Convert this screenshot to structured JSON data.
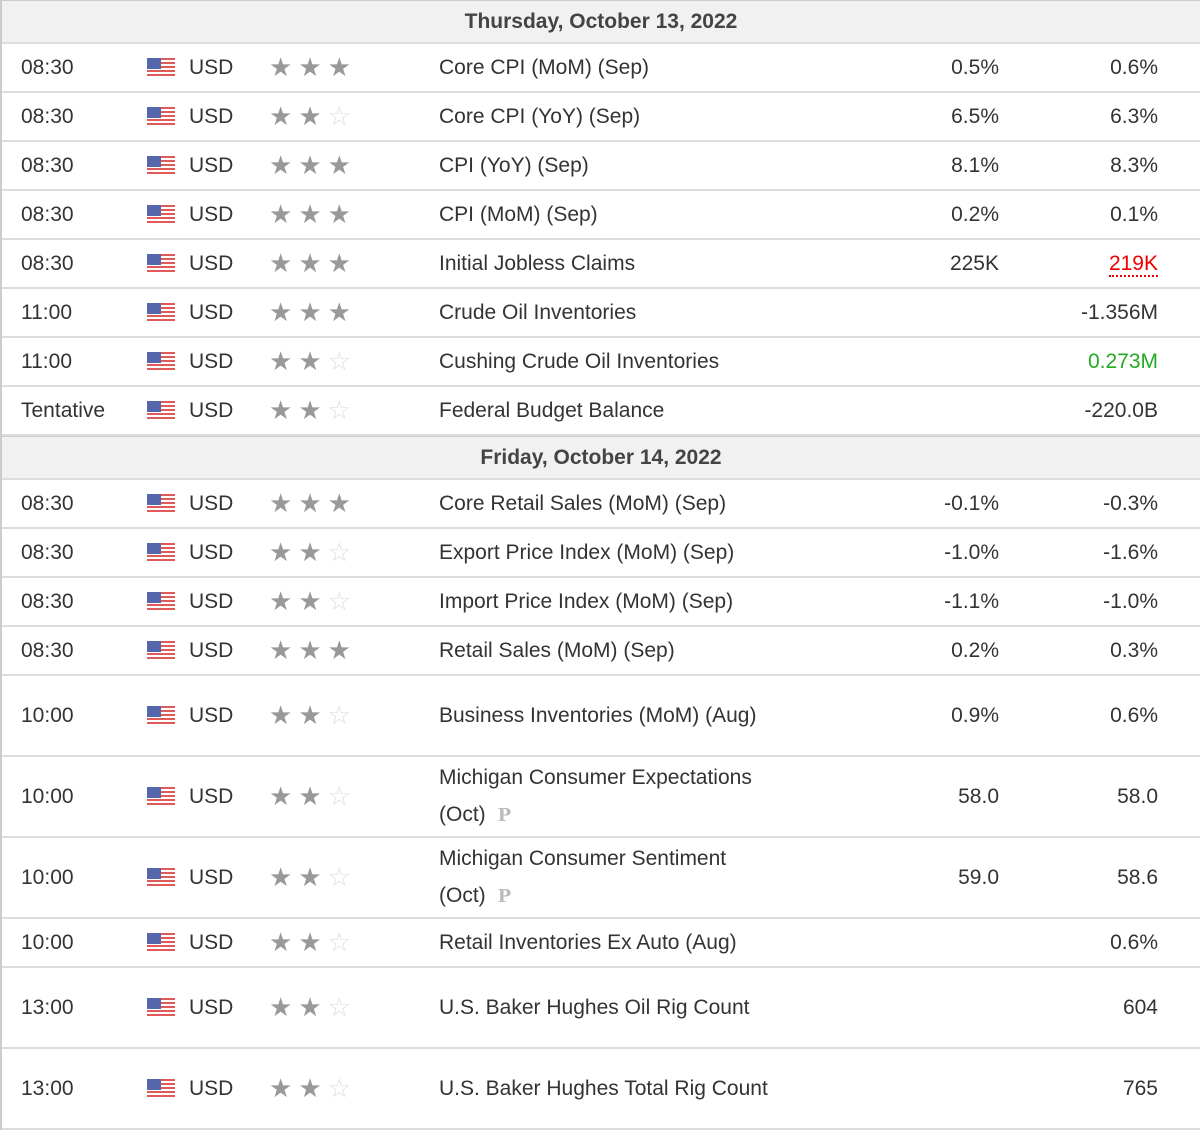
{
  "colors": {
    "red": "#ee0000",
    "green": "#22aa22"
  },
  "days": [
    {
      "title": "Thursday, October 13, 2022",
      "events": [
        {
          "time": "08:30",
          "currency": "USD",
          "stars": 3,
          "event": "Core CPI (MoM) (Sep)",
          "forecast": "0.5%",
          "previous": "0.6%"
        },
        {
          "time": "08:30",
          "currency": "USD",
          "stars": 2,
          "event": "Core CPI (YoY) (Sep)",
          "forecast": "6.5%",
          "previous": "6.3%"
        },
        {
          "time": "08:30",
          "currency": "USD",
          "stars": 3,
          "event": "CPI (YoY) (Sep)",
          "forecast": "8.1%",
          "previous": "8.3%"
        },
        {
          "time": "08:30",
          "currency": "USD",
          "stars": 3,
          "event": "CPI (MoM) (Sep)",
          "forecast": "0.2%",
          "previous": "0.1%"
        },
        {
          "time": "08:30",
          "currency": "USD",
          "stars": 3,
          "event": "Initial Jobless Claims",
          "forecast": "225K",
          "previous": "219K",
          "previous_color": "red"
        },
        {
          "time": "11:00",
          "currency": "USD",
          "stars": 3,
          "event": "Crude Oil Inventories",
          "forecast": "",
          "previous": "-1.356M"
        },
        {
          "time": "11:00",
          "currency": "USD",
          "stars": 2,
          "event": "Cushing Crude Oil Inventories",
          "forecast": "",
          "previous": "0.273M",
          "previous_color": "green"
        },
        {
          "time": "Tentative",
          "currency": "USD",
          "stars": 2,
          "event": "Federal Budget Balance",
          "forecast": "",
          "previous": "-220.0B"
        }
      ]
    },
    {
      "title": "Friday, October 14, 2022",
      "events": [
        {
          "time": "08:30",
          "currency": "USD",
          "stars": 3,
          "event": "Core Retail Sales (MoM) (Sep)",
          "forecast": "-0.1%",
          "previous": "-0.3%"
        },
        {
          "time": "08:30",
          "currency": "USD",
          "stars": 2,
          "event": "Export Price Index (MoM) (Sep)",
          "forecast": "-1.0%",
          "previous": "-1.6%"
        },
        {
          "time": "08:30",
          "currency": "USD",
          "stars": 2,
          "event": "Import Price Index (MoM) (Sep)",
          "forecast": "-1.1%",
          "previous": "-1.0%"
        },
        {
          "time": "08:30",
          "currency": "USD",
          "stars": 3,
          "event": "Retail Sales (MoM) (Sep)",
          "forecast": "0.2%",
          "previous": "0.3%"
        },
        {
          "time": "10:00",
          "currency": "USD",
          "stars": 2,
          "event": "Business Inventories (MoM) (Aug)",
          "forecast": "0.9%",
          "previous": "0.6%",
          "tall": true
        },
        {
          "time": "10:00",
          "currency": "USD",
          "stars": 2,
          "event": "Michigan Consumer Expectations (Oct)",
          "forecast": "58.0",
          "previous": "58.0",
          "preliminary": "P",
          "tall": true
        },
        {
          "time": "10:00",
          "currency": "USD",
          "stars": 2,
          "event": "Michigan Consumer Sentiment (Oct)",
          "forecast": "59.0",
          "previous": "58.6",
          "preliminary": "P",
          "tall": true
        },
        {
          "time": "10:00",
          "currency": "USD",
          "stars": 2,
          "event": "Retail Inventories Ex Auto (Aug)",
          "forecast": "",
          "previous": "0.6%"
        },
        {
          "time": "13:00",
          "currency": "USD",
          "stars": 2,
          "event": "U.S. Baker Hughes Oil Rig Count",
          "forecast": "",
          "previous": "604",
          "tall": true
        },
        {
          "time": "13:00",
          "currency": "USD",
          "stars": 2,
          "event": "U.S. Baker Hughes Total Rig Count",
          "forecast": "",
          "previous": "765",
          "tall": true
        }
      ]
    }
  ]
}
